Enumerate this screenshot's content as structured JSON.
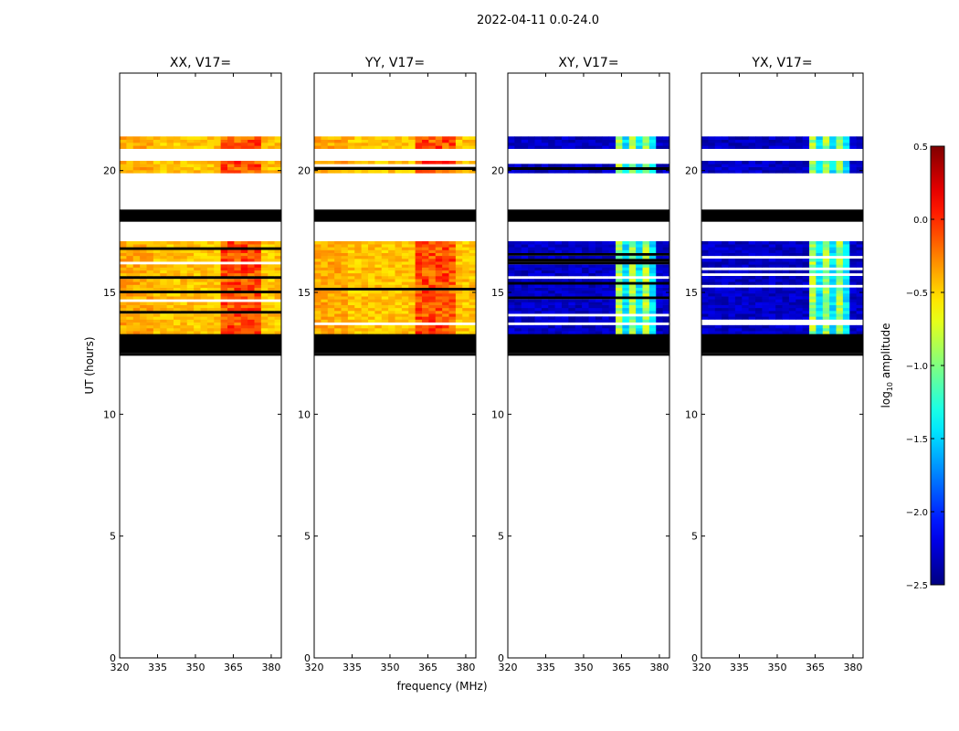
{
  "figure": {
    "suptitle": "2022-04-11 0.0-24.0",
    "xlabel": "frequency (MHz)",
    "ylabel": "UT (hours)"
  },
  "chart_data": {
    "type": "heatmap",
    "x_ticks": [
      320,
      335,
      350,
      365,
      380
    ],
    "y_ticks": [
      0,
      5,
      10,
      15,
      20
    ],
    "x_range": [
      320,
      384
    ],
    "y_range": [
      0,
      24
    ],
    "panels": [
      {
        "title": "XX, V17=",
        "kind": "auto"
      },
      {
        "title": "YY, V17=",
        "kind": "auto"
      },
      {
        "title": "XY, V17=",
        "kind": "cross"
      },
      {
        "title": "YX, V17=",
        "kind": "cross"
      }
    ],
    "row_bands": [
      {
        "start": 12.4,
        "end": 12.5,
        "state": "blank"
      },
      {
        "start": 12.5,
        "end": 13.3,
        "state": "blank"
      },
      {
        "start": 13.3,
        "end": 17.1,
        "state": "data"
      },
      {
        "start": 17.9,
        "end": 18.4,
        "state": "blank"
      },
      {
        "start": 19.9,
        "end": 20.4,
        "state": "data"
      },
      {
        "start": 20.9,
        "end": 21.4,
        "state": "data"
      }
    ],
    "colorbar": {
      "label": "log10 amplitude",
      "min": -2.5,
      "max": 0.5,
      "ticks": [
        "0.5",
        "0.0",
        "−0.5",
        "−1.0",
        "−1.5",
        "−2.0",
        "−2.5"
      ],
      "tick_values": [
        0.5,
        0.0,
        -0.5,
        -1.0,
        -1.5,
        -2.0,
        -2.5
      ],
      "colormap": "jet"
    },
    "level_ranges": {
      "auto": {
        "base": -0.45,
        "hot_freq": [
          360,
          376
        ],
        "hot": -0.1
      },
      "cross": {
        "base": -2.3,
        "hot_freq": [
          362,
          379
        ],
        "hot": -0.9
      }
    }
  }
}
